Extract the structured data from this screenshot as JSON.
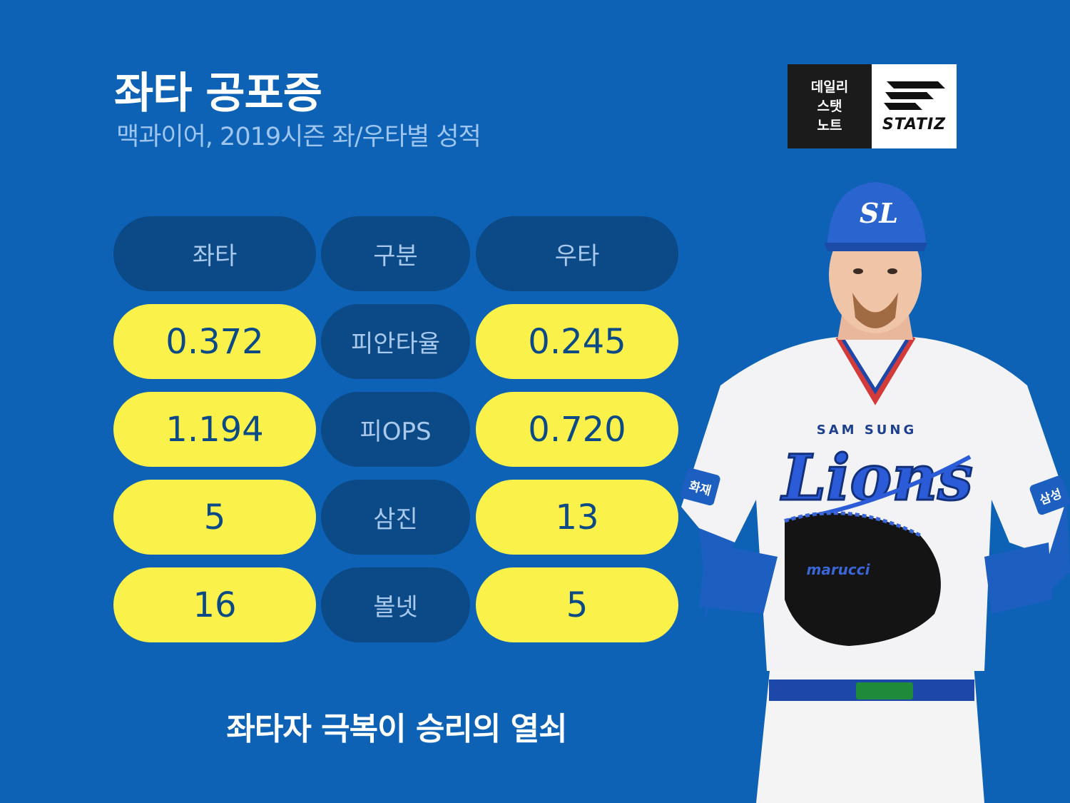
{
  "title": "좌타 공포증",
  "subtitle": "맥과이어, 2019시즌 좌/우타별 성적",
  "logo": {
    "left_lines": [
      "데일리",
      "스탯",
      "노트"
    ],
    "brand": "STATIZ"
  },
  "table": {
    "headers": [
      "좌타",
      "구분",
      "우타"
    ],
    "rows": [
      {
        "left": "0.372",
        "label": "피안타율",
        "right": "0.245"
      },
      {
        "left": "1.194",
        "label": "피OPS",
        "right": "0.720"
      },
      {
        "left": "5",
        "label": "삼진",
        "right": "13"
      },
      {
        "left": "16",
        "label": "볼넷",
        "right": "5"
      }
    ]
  },
  "footer": "좌타자 극복이 승리의 열쇠",
  "player": {
    "cap_logo": "SL",
    "jersey_top": "SAM SUNG",
    "jersey_script": "Lions",
    "left_sleeve": "화재",
    "right_sleeve": "삼성",
    "glove_brand": "marucci"
  },
  "colors": {
    "background": "#0d62b5",
    "dark_pill": "#0b4a86",
    "yellow_pill": "#fbf14b",
    "subtitle": "#9ec5ee"
  }
}
